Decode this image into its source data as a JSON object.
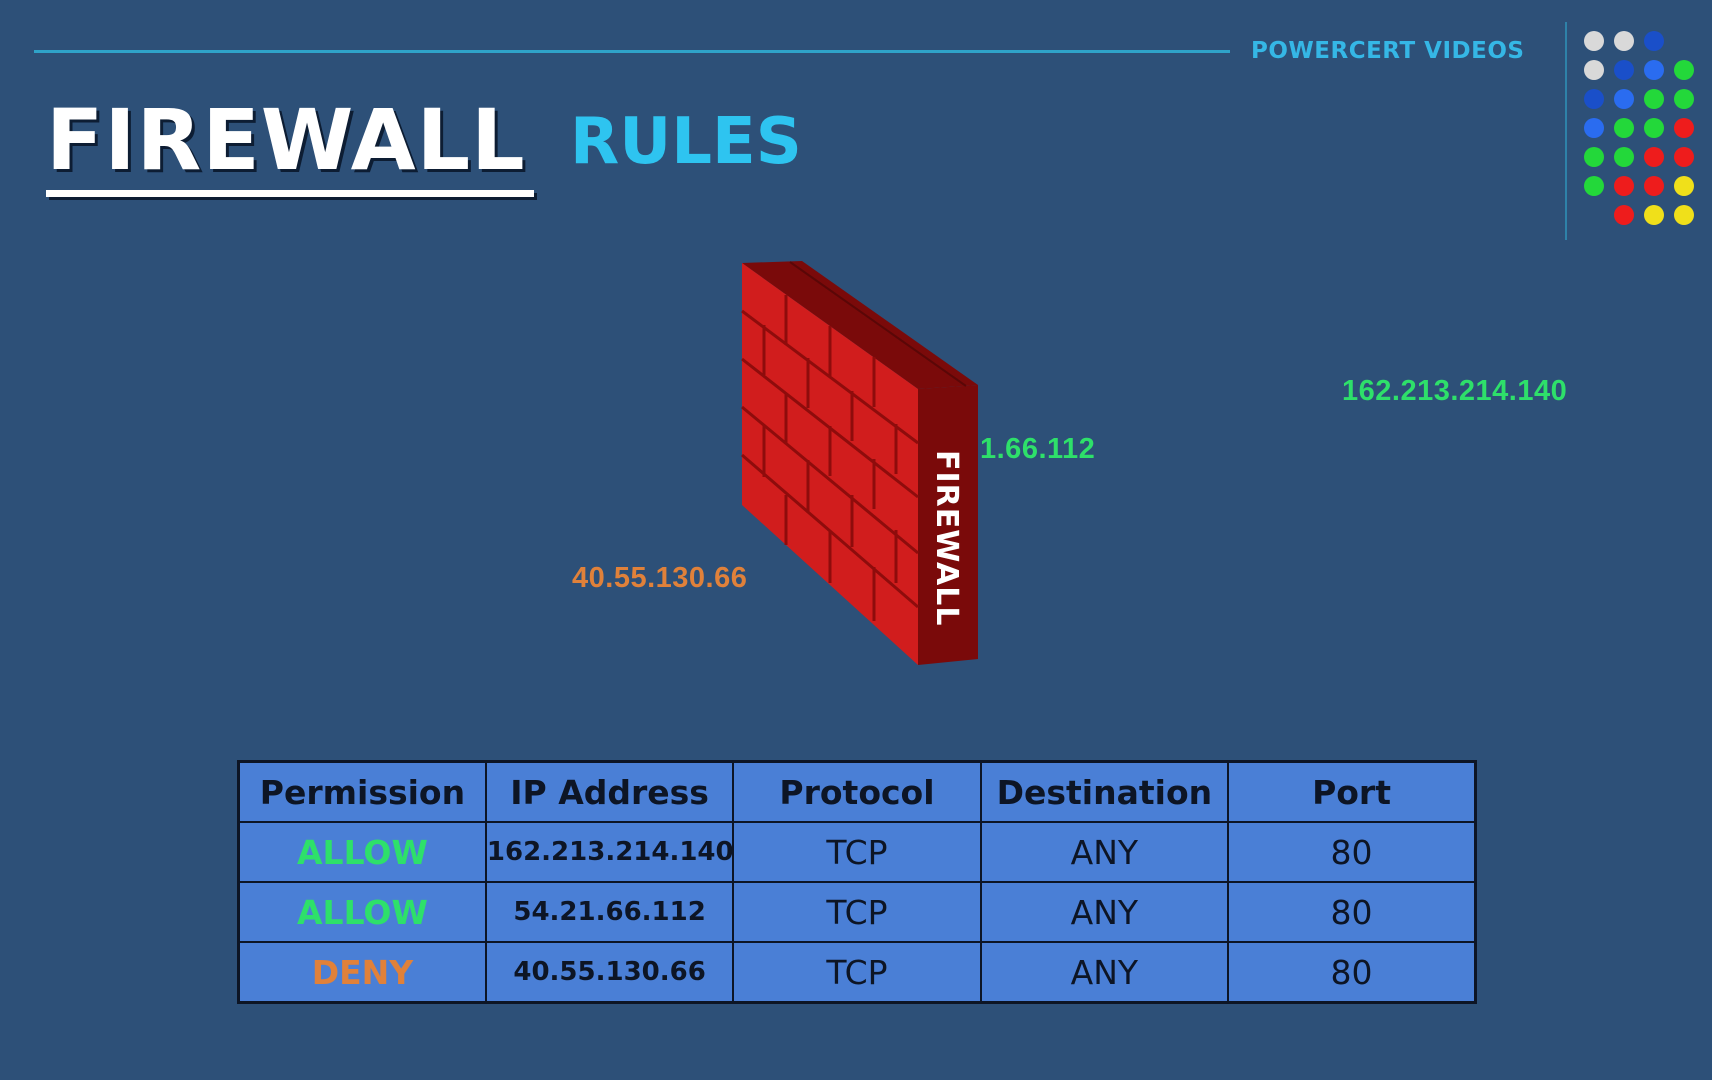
{
  "header": {
    "brand": "POWERCERT VIDEOS",
    "title_main": "FIREWALL",
    "title_sub": "RULES"
  },
  "illustration": {
    "wall_label": "FIREWALL",
    "ips": {
      "top_right": "162.213.214.140",
      "middle": "1.66.112",
      "left": "40.55.130.66"
    }
  },
  "table": {
    "headers": [
      "Permission",
      "IP Address",
      "Protocol",
      "Destination",
      "Port"
    ],
    "rows": [
      {
        "permission": "ALLOW",
        "ip": "162.213.214.140",
        "protocol": "TCP",
        "destination": "ANY",
        "port": "80"
      },
      {
        "permission": "ALLOW",
        "ip": "54.21.66.112",
        "protocol": "TCP",
        "destination": "ANY",
        "port": "80"
      },
      {
        "permission": "DENY",
        "ip": "40.55.130.66",
        "protocol": "TCP",
        "destination": "ANY",
        "port": "80"
      }
    ]
  },
  "colors": {
    "background": "#2d5078",
    "allow": "#2ee06a",
    "deny": "#e0813a",
    "accent": "#35b7e6",
    "table_fill": "#4a7fd6"
  }
}
